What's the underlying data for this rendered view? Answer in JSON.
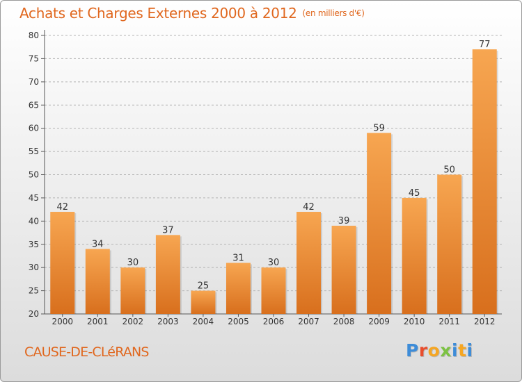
{
  "title": "Achats et Charges Externes 2000 à 2012",
  "title_unit": "(en milliers d'€)",
  "commune": "CAUSE-DE-CLéRANS",
  "brand": "Proxiti",
  "brand_colors": [
    "#3d8cd8",
    "#e94d2c",
    "#f5a623",
    "#7cc243",
    "#3d8cd8",
    "#f5a623",
    "#3d8cd8"
  ],
  "colors": {
    "accent": "#e0671e",
    "bar_top": "#f7a651",
    "bar_bottom": "#d86f1d",
    "grid": "#b4b4b4"
  },
  "chart_data": {
    "type": "bar",
    "title": "Achats et Charges Externes 2000 à 2012",
    "categories": [
      "2000",
      "2001",
      "2002",
      "2003",
      "2004",
      "2005",
      "2006",
      "2007",
      "2008",
      "2009",
      "2010",
      "2011",
      "2012"
    ],
    "values": [
      42,
      34,
      30,
      37,
      25,
      31,
      30,
      42,
      39,
      59,
      45,
      50,
      77
    ],
    "ylim": [
      20,
      80
    ],
    "yticks": [
      20,
      25,
      30,
      35,
      40,
      45,
      50,
      55,
      60,
      65,
      70,
      75,
      80
    ],
    "grid": true,
    "data_labels": true
  }
}
